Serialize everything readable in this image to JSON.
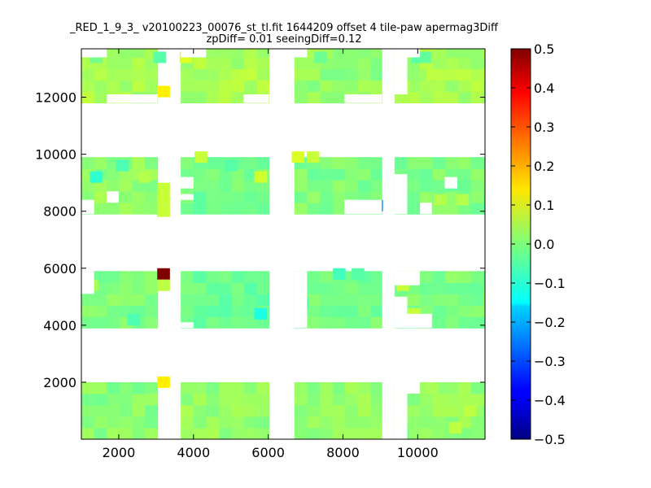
{
  "chart_data": {
    "type": "heatmap",
    "title_line1": "_RED_1_9_3_ v20100223_00076_st_tl.fit 1644209 offset 4 tile-paw apermag3Diff",
    "title_line2": "zpDiff= 0.01 seeingDiff=0.12",
    "xlabel": "",
    "ylabel": "",
    "xlim": [
      1000,
      11800
    ],
    "ylim": [
      0,
      13700
    ],
    "x_ticks": [
      2000,
      4000,
      6000,
      8000,
      10000
    ],
    "y_ticks": [
      2000,
      4000,
      6000,
      8000,
      10000,
      12000
    ],
    "grid": false,
    "colorscale": "jet",
    "colorbar": {
      "min": -0.5,
      "max": 0.5,
      "ticks": [
        "0.5",
        "0.4",
        "0.3",
        "0.2",
        "0.1",
        "0.0",
        "−0.1",
        "−0.2",
        "−0.3",
        "−0.4",
        "−0.5"
      ]
    },
    "cell_size": [
      340,
      400
    ],
    "blocks": [
      {
        "x": [
          1000,
          3040
        ],
        "y": [
          0,
          2000
        ],
        "value": 0.01
      },
      {
        "x": [
          3660,
          6020
        ],
        "y": [
          0,
          2000
        ],
        "value": 0.02
      },
      {
        "x": [
          6700,
          9040
        ],
        "y": [
          0,
          2000
        ],
        "value": 0.02
      },
      {
        "x": [
          9380,
          11800
        ],
        "y": [
          0,
          2000
        ],
        "value": 0.02
      },
      {
        "x": [
          1000,
          3040
        ],
        "y": [
          3900,
          5900
        ],
        "value": 0.0
      },
      {
        "x": [
          3660,
          6020
        ],
        "y": [
          3900,
          5900
        ],
        "value": -0.02
      },
      {
        "x": [
          6700,
          9040
        ],
        "y": [
          3900,
          5900
        ],
        "value": -0.01
      },
      {
        "x": [
          9380,
          11800
        ],
        "y": [
          3900,
          5900
        ],
        "value": 0.0
      },
      {
        "x": [
          1000,
          3040
        ],
        "y": [
          7900,
          9900
        ],
        "value": 0.02
      },
      {
        "x": [
          3660,
          6020
        ],
        "y": [
          7900,
          9900
        ],
        "value": -0.01
      },
      {
        "x": [
          6700,
          9040
        ],
        "y": [
          7900,
          9900
        ],
        "value": 0.0
      },
      {
        "x": [
          9380,
          11800
        ],
        "y": [
          7900,
          9900
        ],
        "value": 0.0
      },
      {
        "x": [
          1000,
          3040
        ],
        "y": [
          11800,
          13800
        ],
        "value": 0.04
      },
      {
        "x": [
          3660,
          6020
        ],
        "y": [
          11800,
          13800
        ],
        "value": 0.04
      },
      {
        "x": [
          6700,
          9040
        ],
        "y": [
          11800,
          13800
        ],
        "value": 0.02
      },
      {
        "x": [
          9380,
          11800
        ],
        "y": [
          11800,
          13800
        ],
        "value": 0.04
      }
    ],
    "holes": [
      {
        "x": [
          1000,
          1340
        ],
        "y": [
          13400,
          13800
        ]
      },
      {
        "x": [
          1340,
          1680
        ],
        "y": [
          13400,
          13800
        ]
      },
      {
        "x": [
          1680,
          3040
        ],
        "y": [
          11800,
          12100
        ]
      },
      {
        "x": [
          3660,
          4000
        ],
        "y": [
          13400,
          13800
        ]
      },
      {
        "x": [
          4000,
          4340
        ],
        "y": [
          13400,
          13800
        ]
      },
      {
        "x": [
          5340,
          6020
        ],
        "y": [
          11800,
          12100
        ]
      },
      {
        "x": [
          6700,
          7040
        ],
        "y": [
          13400,
          13800
        ]
      },
      {
        "x": [
          8040,
          9040
        ],
        "y": [
          11800,
          12100
        ]
      },
      {
        "x": [
          9380,
          9720
        ],
        "y": [
          12100,
          13800
        ]
      },
      {
        "x": [
          9720,
          10060
        ],
        "y": [
          13400,
          13800
        ]
      },
      {
        "x": [
          1000,
          1340
        ],
        "y": [
          7900,
          8400
        ]
      },
      {
        "x": [
          1680,
          2000
        ],
        "y": [
          8300,
          8700
        ]
      },
      {
        "x": [
          3660,
          4000
        ],
        "y": [
          8800,
          9200
        ]
      },
      {
        "x": [
          3660,
          4000
        ],
        "y": [
          8400,
          8600
        ]
      },
      {
        "x": [
          6020,
          6020
        ],
        "y": [
          7900,
          7900
        ]
      },
      {
        "x": [
          8040,
          9040
        ],
        "y": [
          7900,
          8400
        ]
      },
      {
        "x": [
          9380,
          9720
        ],
        "y": [
          7900,
          9300
        ]
      },
      {
        "x": [
          10060,
          10380
        ],
        "y": [
          7900,
          8300
        ]
      },
      {
        "x": [
          10720,
          11060
        ],
        "y": [
          8800,
          9200
        ]
      },
      {
        "x": [
          1000,
          1340
        ],
        "y": [
          5900,
          5100
        ]
      },
      {
        "x": [
          1000,
          1340
        ],
        "y": [
          3900,
          3900
        ]
      },
      {
        "x": [
          3660,
          4000
        ],
        "y": [
          3900,
          4100
        ]
      },
      {
        "x": [
          6700,
          7040
        ],
        "y": [
          3900,
          5900
        ]
      },
      {
        "x": [
          7380,
          7380
        ],
        "y": [
          5900,
          5900
        ]
      },
      {
        "x": [
          9380,
          9720
        ],
        "y": [
          3900,
          5000
        ]
      },
      {
        "x": [
          9720,
          10380
        ],
        "y": [
          3900,
          4400
        ]
      },
      {
        "x": [
          9380,
          10060
        ],
        "y": [
          5400,
          5900
        ]
      },
      {
        "x": [
          9380,
          9720
        ],
        "y": [
          0,
          400
        ]
      },
      {
        "x": [
          9380,
          10060
        ],
        "y": [
          1600,
          2000
        ]
      },
      {
        "x": [
          9380,
          9720
        ],
        "y": [
          400,
          1600
        ]
      }
    ],
    "cells": [
      {
        "x": 3200,
        "y": 5800,
        "value": 0.5
      },
      {
        "x": 3200,
        "y": 2000,
        "value": 0.14
      },
      {
        "x": 3200,
        "y": 12200,
        "value": 0.14
      },
      {
        "x": 3200,
        "y": 5400,
        "value": 0.06
      },
      {
        "x": 3200,
        "y": 8000,
        "value": 0.07
      },
      {
        "x": 3200,
        "y": 8400,
        "value": 0.07
      },
      {
        "x": 3200,
        "y": 8800,
        "value": 0.07
      },
      {
        "x": 3800,
        "y": 13400,
        "value": 0.09
      },
      {
        "x": 4200,
        "y": 9900,
        "value": 0.07
      },
      {
        "x": 6800,
        "y": 9900,
        "value": 0.09
      },
      {
        "x": 7200,
        "y": 9900,
        "value": 0.07
      },
      {
        "x": 5800,
        "y": 9200,
        "value": 0.08
      },
      {
        "x": 8900,
        "y": 8200,
        "value": -0.24
      },
      {
        "x": 1400,
        "y": 9200,
        "value": -0.08
      },
      {
        "x": 5800,
        "y": 4400,
        "value": -0.1
      },
      {
        "x": 6900,
        "y": 4800,
        "value": -0.07
      },
      {
        "x": 7900,
        "y": 5800,
        "value": -0.06
      },
      {
        "x": 8400,
        "y": 5800,
        "value": -0.04
      },
      {
        "x": 1300,
        "y": 5400,
        "value": 0.04
      },
      {
        "x": 2400,
        "y": 4200,
        "value": -0.05
      },
      {
        "x": 9600,
        "y": 12400,
        "value": 0.06
      },
      {
        "x": 9600,
        "y": 5400,
        "value": 0.07
      },
      {
        "x": 9900,
        "y": 4400,
        "value": 0.07
      },
      {
        "x": 10400,
        "y": 12800,
        "value": 0.06
      },
      {
        "x": 10400,
        "y": 1800,
        "value": 0.04
      },
      {
        "x": 11400,
        "y": 1000,
        "value": 0.06
      },
      {
        "x": 11000,
        "y": 400,
        "value": 0.06
      },
      {
        "x": 9600,
        "y": 200,
        "value": -0.01
      },
      {
        "x": 1400,
        "y": 13400,
        "value": -0.01
      },
      {
        "x": 3100,
        "y": 13400,
        "value": -0.04
      },
      {
        "x": 10000,
        "y": 13400,
        "value": -0.04
      },
      {
        "x": 10200,
        "y": 13400,
        "value": -0.03
      },
      {
        "x": 2100,
        "y": 9600,
        "value": -0.05
      },
      {
        "x": 2700,
        "y": 9200,
        "value": 0.05
      },
      {
        "x": 7400,
        "y": 13400,
        "value": -0.02
      },
      {
        "x": 5000,
        "y": 9600,
        "value": -0.04
      },
      {
        "x": 10600,
        "y": 8400,
        "value": 0.05
      },
      {
        "x": 11200,
        "y": 8400,
        "value": 0.05
      }
    ]
  }
}
